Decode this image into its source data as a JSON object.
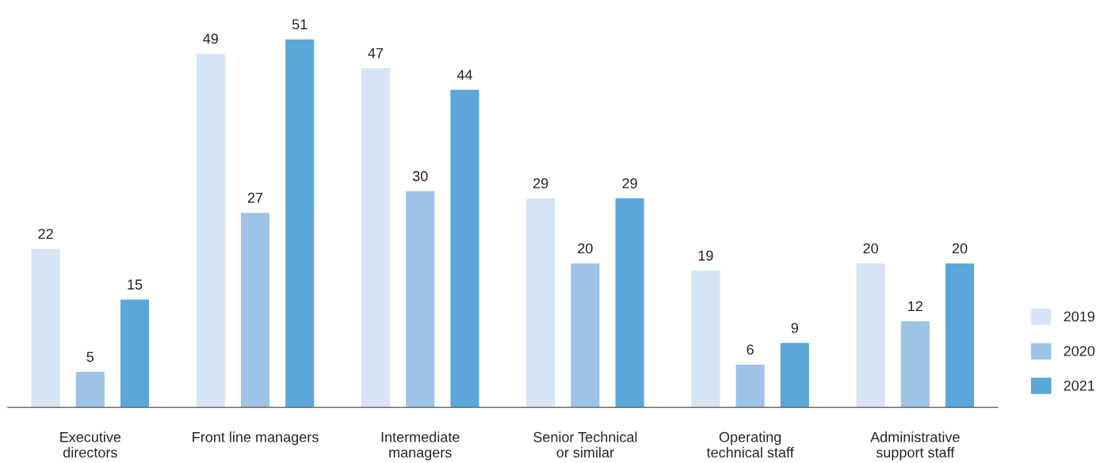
{
  "chart_data": {
    "type": "bar",
    "categories": [
      "Executive\ndirectors",
      "Front line managers",
      "Intermediate\nmanagers",
      "Senior Technical\nor similar",
      "Operating\ntechnical staff",
      "Administrative\nsupport staff"
    ],
    "series": [
      {
        "name": "2019",
        "color": "#d6e4f5",
        "values": [
          22,
          49,
          47,
          29,
          19,
          20
        ]
      },
      {
        "name": "2020",
        "color": "#9dc3e6",
        "values": [
          5,
          27,
          30,
          20,
          6,
          12
        ]
      },
      {
        "name": "2021",
        "color": "#5ba7da",
        "values": [
          15,
          51,
          44,
          29,
          9,
          20
        ]
      }
    ],
    "data_labels": true,
    "legend": "bottom right",
    "grid": false
  }
}
